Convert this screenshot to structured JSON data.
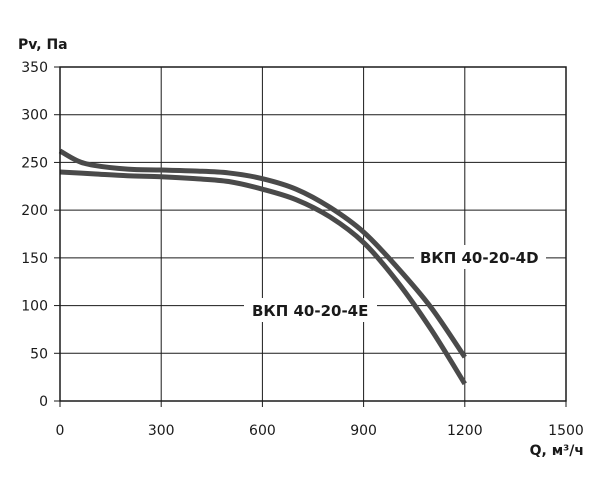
{
  "chart_data": {
    "type": "line",
    "xlabel": "Q, м³/ч",
    "ylabel": "Pv, Па",
    "xlim": [
      0,
      1500
    ],
    "ylim": [
      0,
      350
    ],
    "xticks": [
      0,
      300,
      600,
      900,
      1200,
      1500
    ],
    "yticks": [
      0,
      50,
      100,
      150,
      200,
      250,
      300,
      350
    ],
    "grid": true,
    "series": [
      {
        "name": "ВКП 40-20-4D",
        "color": "#4a4a4a",
        "x": [
          0,
          50,
          100,
          200,
          300,
          400,
          500,
          600,
          700,
          800,
          900,
          1000,
          1100,
          1200
        ],
        "y": [
          262,
          252,
          247,
          243,
          242,
          241,
          239,
          233,
          222,
          203,
          177,
          140,
          98,
          46
        ]
      },
      {
        "name": "ВКП 40-20-4E",
        "color": "#4a4a4a",
        "x": [
          0,
          100,
          200,
          300,
          400,
          500,
          600,
          700,
          800,
          900,
          1000,
          1100,
          1200
        ],
        "y": [
          240,
          238,
          236,
          235,
          233,
          230,
          222,
          211,
          193,
          166,
          125,
          75,
          18
        ]
      }
    ]
  }
}
